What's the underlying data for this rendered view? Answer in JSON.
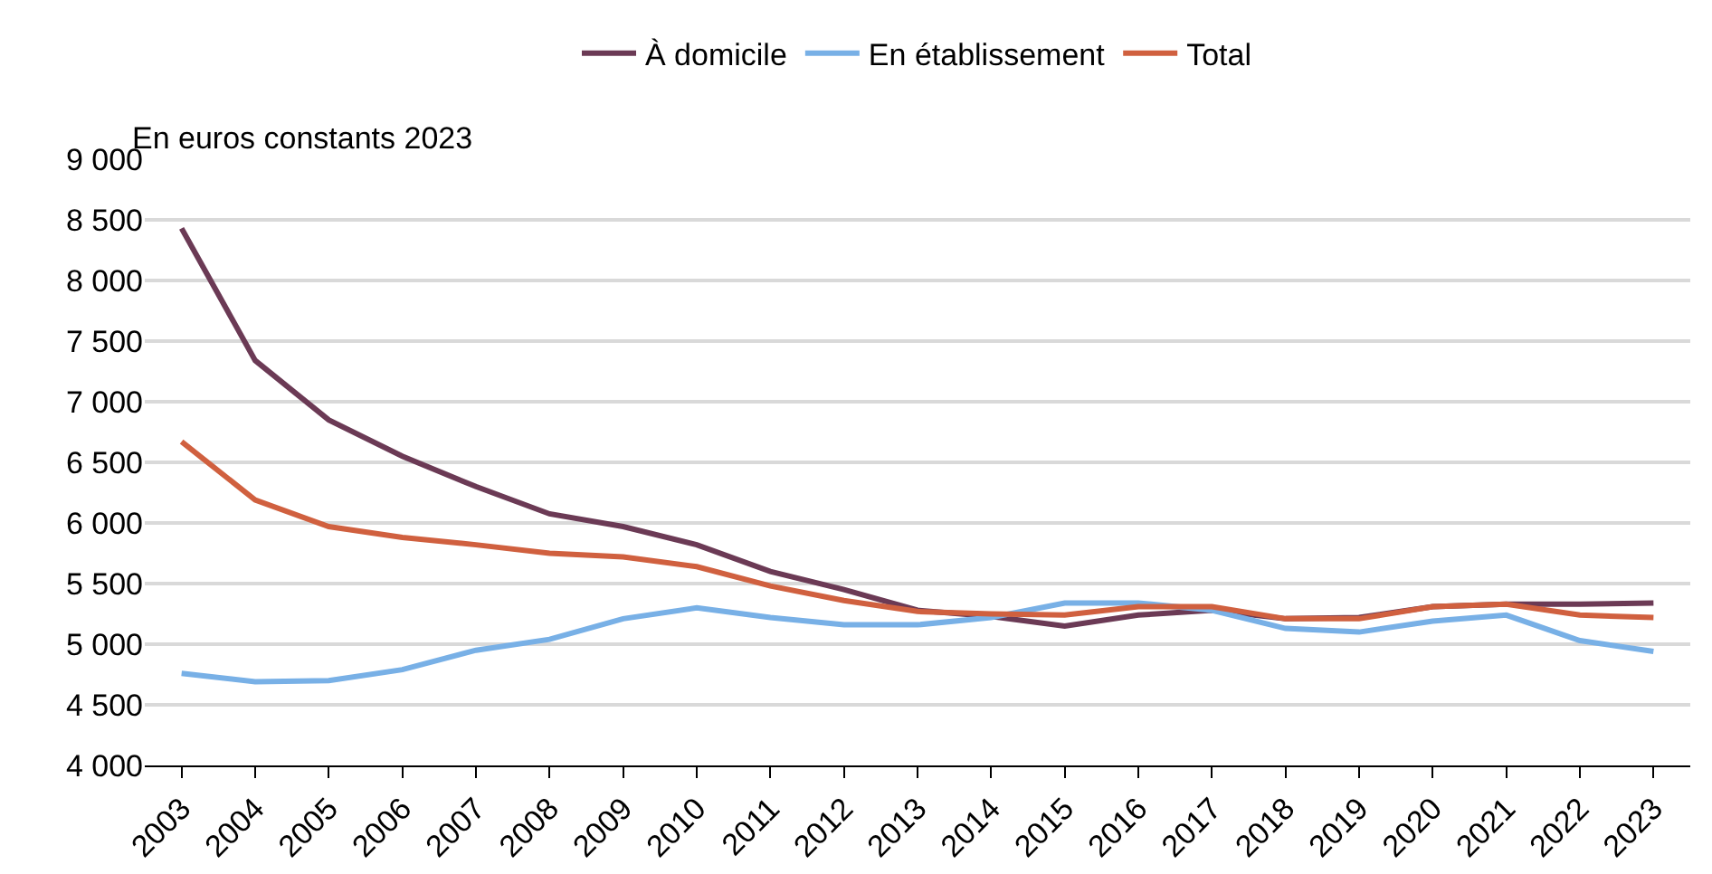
{
  "chart_data": {
    "type": "line",
    "ylabel": "En euros constants 2023",
    "categories": [
      "2003",
      "2004",
      "2005",
      "2006",
      "2007",
      "2008",
      "2009",
      "2010",
      "2011",
      "2012",
      "2013",
      "2014",
      "2015",
      "2016",
      "2017",
      "2018",
      "2019",
      "2020",
      "2021",
      "2022",
      "2023"
    ],
    "series": [
      {
        "name": "À domicile",
        "color": "#6b3a55",
        "values": [
          8430,
          7340,
          6850,
          6550,
          6300,
          6075,
          5970,
          5820,
          5600,
          5450,
          5280,
          5230,
          5150,
          5240,
          5280,
          5210,
          5220,
          5310,
          5330,
          5330,
          5340
        ]
      },
      {
        "name": "En établissement",
        "color": "#78b0e6",
        "values": [
          4760,
          4690,
          4700,
          4790,
          4950,
          5040,
          5210,
          5300,
          5220,
          5160,
          5160,
          5220,
          5340,
          5340,
          5280,
          5130,
          5100,
          5190,
          5240,
          5030,
          4940
        ]
      },
      {
        "name": "Total",
        "color": "#d0603f",
        "values": [
          6670,
          6190,
          5970,
          5880,
          5820,
          5750,
          5720,
          5640,
          5480,
          5360,
          5270,
          5250,
          5240,
          5310,
          5310,
          5210,
          5210,
          5310,
          5330,
          5240,
          5220
        ]
      }
    ],
    "ylim": [
      4000,
      9000
    ],
    "yticks": [
      {
        "value": 4000,
        "label": "4 000"
      },
      {
        "value": 4500,
        "label": "4 500"
      },
      {
        "value": 5000,
        "label": "5 000"
      },
      {
        "value": 5500,
        "label": "5 500"
      },
      {
        "value": 6000,
        "label": "6 000"
      },
      {
        "value": 6500,
        "label": "6 500"
      },
      {
        "value": 7000,
        "label": "7 000"
      },
      {
        "value": 7500,
        "label": "7 500"
      },
      {
        "value": 8000,
        "label": "8 000"
      },
      {
        "value": 8500,
        "label": "8 500"
      },
      {
        "value": 9000,
        "label": "9 000"
      }
    ],
    "grid": "y",
    "legend": "top",
    "marker": "none",
    "line_style": "solid"
  }
}
